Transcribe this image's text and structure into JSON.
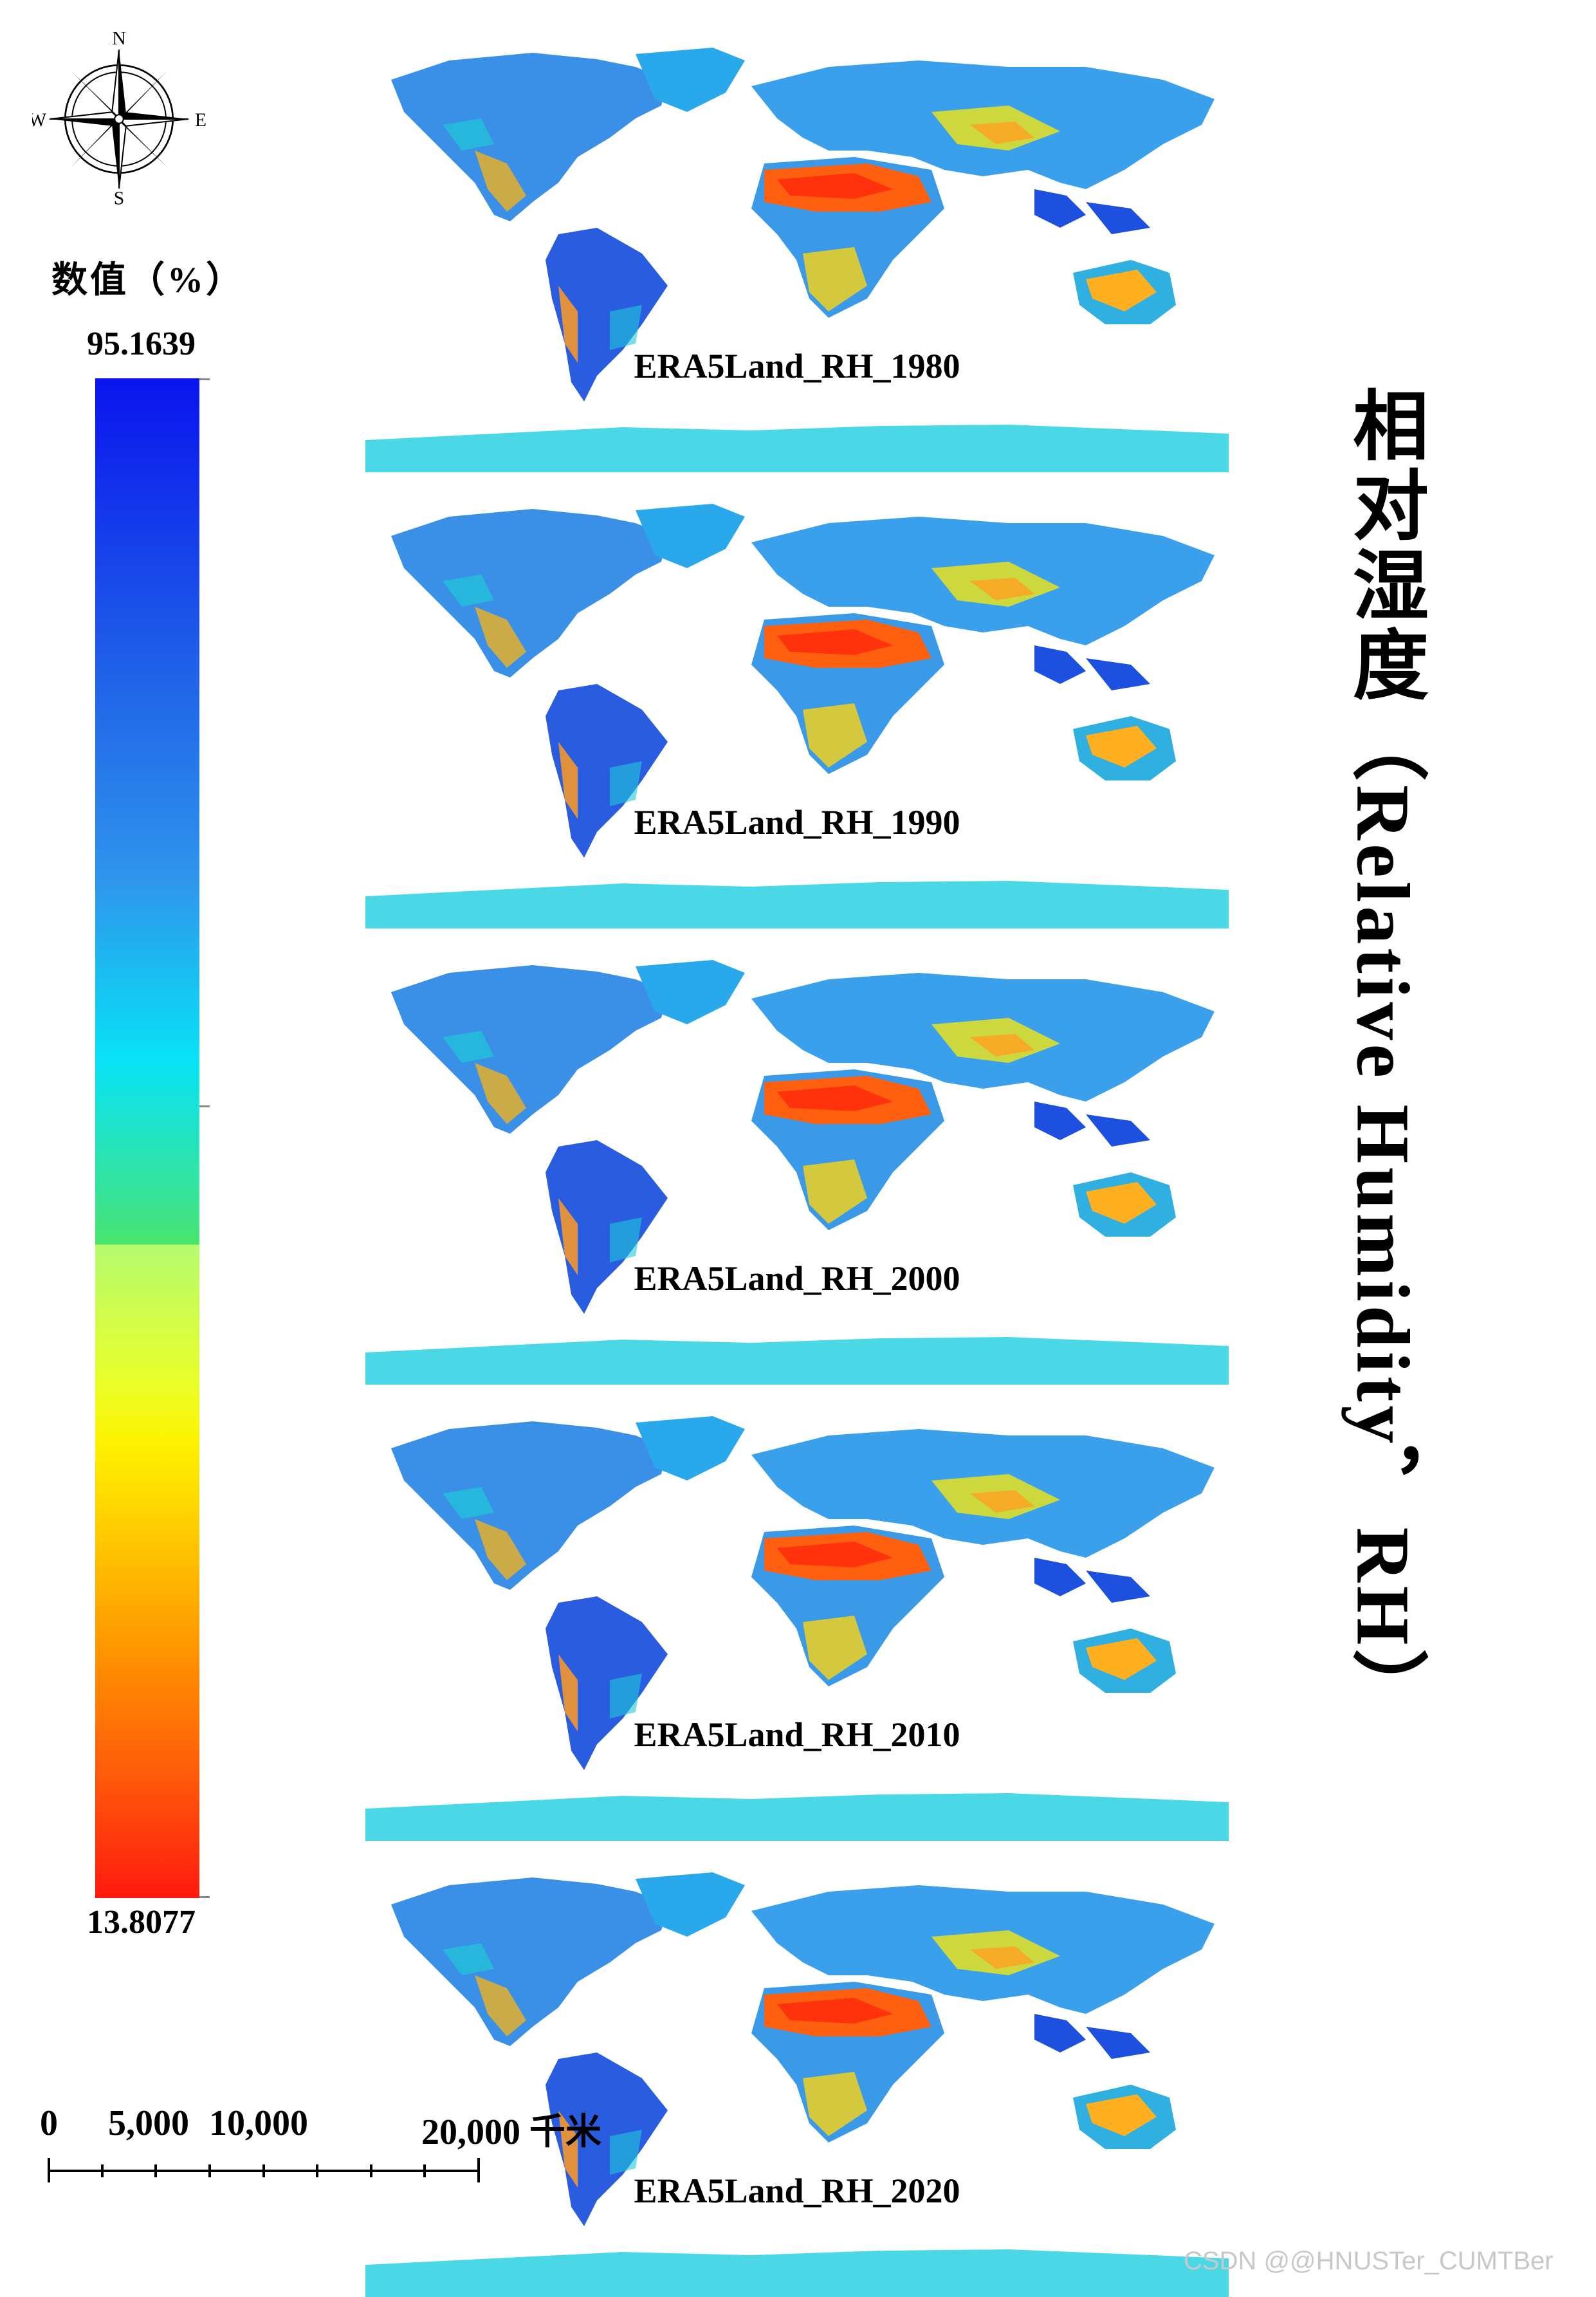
{
  "compass": {
    "north": "N",
    "south": "S",
    "east": "E",
    "west": "W"
  },
  "legend": {
    "title": "数值（%）",
    "max_label": "95.1639",
    "min_label": "13.8077",
    "max_value": 95.1639,
    "min_value": 13.8077,
    "colors": [
      "#0a14ee",
      "#2f95ec",
      "#08e3f6",
      "#4ae56a",
      "#b6fb6e",
      "#fff200",
      "#ff9300",
      "#ff1a0e"
    ]
  },
  "panels": [
    {
      "label": "ERA5Land_RH_1980"
    },
    {
      "label": "ERA5Land_RH_1990"
    },
    {
      "label": "ERA5Land_RH_2000"
    },
    {
      "label": "ERA5Land_RH_2010"
    },
    {
      "label": "ERA5Land_RH_2020"
    }
  ],
  "side_title": "相对湿度（Relative Humidity，RH）",
  "scale_bar": {
    "labels": [
      "0",
      "5,000",
      "10,000",
      "20,000 千米"
    ],
    "values": [
      0,
      5000,
      10000,
      20000
    ],
    "unit": "千米"
  },
  "watermark": "CSDN @@HNUSTer_CUMTBer"
}
